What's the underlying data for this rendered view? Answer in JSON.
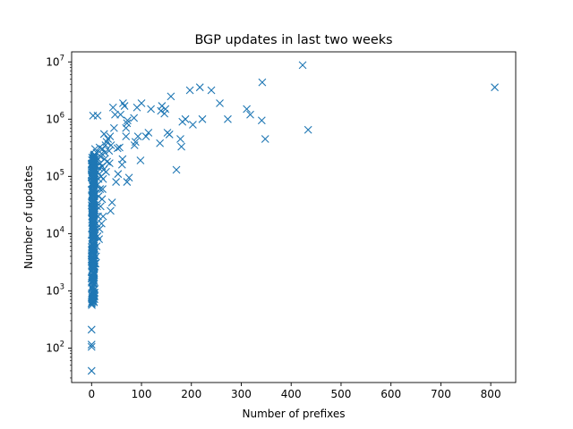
{
  "chart_data": {
    "type": "scatter",
    "title": "BGP updates in last two weeks",
    "xlabel": "Number of prefixes",
    "ylabel": "Number of updates",
    "xlim": [
      -40,
      850
    ],
    "ylim": [
      25,
      15000000
    ],
    "yscale": "log",
    "grid": false,
    "marker": "x",
    "marker_color": "#1f77b4",
    "x_ticks": [
      0,
      100,
      200,
      300,
      400,
      500,
      600,
      700,
      800
    ],
    "x_tick_labels": [
      "0",
      "100",
      "200",
      "300",
      "400",
      "500",
      "600",
      "700",
      "800"
    ],
    "y_ticks": [
      100,
      1000,
      10000,
      100000,
      1000000,
      10000000
    ],
    "y_tick_base": "10",
    "y_tick_exponents": [
      "2",
      "3",
      "4",
      "5",
      "6",
      "7"
    ],
    "points": [
      [
        808,
        3600000
      ],
      [
        423,
        8800000
      ],
      [
        434,
        650000
      ],
      [
        342,
        4400000
      ],
      [
        348,
        450000
      ],
      [
        341,
        950000
      ],
      [
        318,
        1200000
      ],
      [
        311,
        1500000
      ],
      [
        273,
        1000000
      ],
      [
        257,
        1900000
      ],
      [
        240,
        3200000
      ],
      [
        222,
        1000000
      ],
      [
        217,
        3600000
      ],
      [
        203,
        800000
      ],
      [
        197,
        3200000
      ],
      [
        188,
        1000000
      ],
      [
        182,
        900000
      ],
      [
        180,
        330000
      ],
      [
        178,
        450000
      ],
      [
        170,
        130000
      ],
      [
        159,
        2500000
      ],
      [
        156,
        540000
      ],
      [
        152,
        580000
      ],
      [
        148,
        1500000
      ],
      [
        146,
        1250000
      ],
      [
        141,
        1700000
      ],
      [
        139,
        1400000
      ],
      [
        137,
        380000
      ],
      [
        119,
        1500000
      ],
      [
        114,
        580000
      ],
      [
        109,
        500000
      ],
      [
        100,
        1900000
      ],
      [
        98,
        190000
      ],
      [
        93,
        500000
      ],
      [
        91,
        1600000
      ],
      [
        88,
        400000
      ],
      [
        86,
        350000
      ],
      [
        85,
        1050000
      ],
      [
        75,
        95000
      ],
      [
        72,
        950000
      ],
      [
        71,
        850000
      ],
      [
        71,
        80000
      ],
      [
        69,
        700000
      ],
      [
        69,
        500000
      ],
      [
        66,
        1700000
      ],
      [
        63,
        1900000
      ],
      [
        62,
        200000
      ],
      [
        61,
        160000
      ],
      [
        58,
        1200000
      ],
      [
        56,
        320000
      ],
      [
        53,
        110000
      ],
      [
        52,
        310000
      ],
      [
        49,
        80000
      ],
      [
        47,
        1200000
      ],
      [
        45,
        700000
      ],
      [
        43,
        1600000
      ],
      [
        41,
        35000
      ],
      [
        39,
        350000
      ],
      [
        38,
        25000
      ],
      [
        37,
        500000
      ],
      [
        36,
        170000
      ],
      [
        35,
        280000
      ],
      [
        33,
        450000
      ],
      [
        31,
        180000
      ],
      [
        30,
        400000
      ],
      [
        29,
        120000
      ],
      [
        28,
        350000
      ],
      [
        27,
        260000
      ],
      [
        26,
        200000
      ],
      [
        25,
        550000
      ],
      [
        24,
        130000
      ],
      [
        23,
        90000
      ],
      [
        23,
        20000
      ],
      [
        22,
        300000
      ],
      [
        22,
        60000
      ],
      [
        21,
        150000
      ],
      [
        21,
        40000
      ],
      [
        20,
        250000
      ],
      [
        20,
        15000
      ],
      [
        19,
        100000
      ],
      [
        18,
        220000
      ],
      [
        18,
        30000
      ],
      [
        17,
        170000
      ],
      [
        17,
        60000
      ],
      [
        16,
        320000
      ],
      [
        16,
        12000
      ],
      [
        15,
        140000
      ],
      [
        15,
        8000
      ],
      [
        14,
        90000
      ],
      [
        14,
        45000
      ],
      [
        13,
        200000
      ],
      [
        13,
        20000
      ],
      [
        12,
        1150000
      ],
      [
        12,
        120000
      ],
      [
        12,
        9000
      ],
      [
        11,
        70000
      ],
      [
        11,
        30000
      ],
      [
        10,
        260000
      ],
      [
        10,
        15000
      ],
      [
        10,
        6000
      ],
      [
        9,
        180000
      ],
      [
        9,
        50000
      ],
      [
        9,
        4000
      ],
      [
        8,
        110000
      ],
      [
        8,
        25000
      ],
      [
        8,
        3000
      ],
      [
        7,
        300000
      ],
      [
        7,
        80000
      ],
      [
        7,
        12000
      ],
      [
        6,
        160000
      ],
      [
        6,
        40000
      ],
      [
        6,
        7000
      ],
      [
        5,
        220000
      ],
      [
        5,
        60000
      ],
      [
        5,
        18000
      ],
      [
        5,
        2500
      ],
      [
        4,
        130000
      ],
      [
        4,
        35000
      ],
      [
        4,
        9000
      ],
      [
        4,
        1500
      ],
      [
        3,
        1150000
      ],
      [
        3,
        200000
      ],
      [
        3,
        90000
      ],
      [
        3,
        22000
      ],
      [
        3,
        5000
      ],
      [
        3,
        1000
      ],
      [
        2,
        150000
      ],
      [
        2,
        50000
      ],
      [
        2,
        14000
      ],
      [
        2,
        3500
      ],
      [
        2,
        800
      ],
      [
        1,
        100000
      ],
      [
        1,
        28000
      ],
      [
        1,
        6500
      ],
      [
        1,
        1800
      ],
      [
        1,
        650
      ],
      [
        0,
        210
      ],
      [
        0,
        115
      ],
      [
        0,
        105
      ],
      [
        0,
        40
      ]
    ],
    "dense_cluster": {
      "x_max": 6,
      "y_min": 550,
      "y_max": 250000,
      "count": 320
    }
  }
}
